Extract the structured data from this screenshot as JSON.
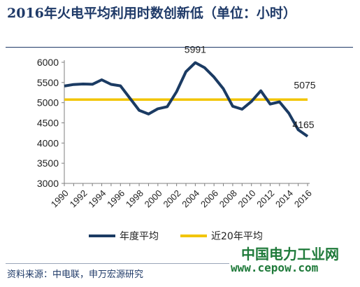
{
  "header": {
    "title": "2016年火电平均利用时数创新低（单位：小时）"
  },
  "footer": {
    "source": "资料来源：中电联，申万宏源研究"
  },
  "watermark": {
    "brand": "中国电力工业网",
    "url": "www.cepow.com"
  },
  "chart_data": {
    "type": "line",
    "x": [
      1990,
      1991,
      1992,
      1993,
      1994,
      1995,
      1996,
      1997,
      1998,
      1999,
      2000,
      2001,
      2002,
      2003,
      2004,
      2005,
      2006,
      2007,
      2008,
      2009,
      2010,
      2011,
      2012,
      2013,
      2014,
      2015,
      2016
    ],
    "x_tick_labels": [
      "1990",
      "1992",
      "1994",
      "1996",
      "1998",
      "2000",
      "2002",
      "2004",
      "2006",
      "2008",
      "2010",
      "2012",
      "2014",
      "2016"
    ],
    "y_tick_labels": [
      "3000",
      "3500",
      "4000",
      "4500",
      "5000",
      "5500",
      "6000"
    ],
    "ylim": [
      3000,
      6000
    ],
    "grid": false,
    "legend_position": "bottom",
    "series": [
      {
        "name": "年度平均",
        "color": "#1b3b63",
        "values": [
          5413,
          5451,
          5462,
          5455,
          5566,
          5454,
          5418,
          5114,
          4811,
          4719,
          4848,
          4900,
          5272,
          5767,
          5991,
          5865,
          5633,
          5344,
          4911,
          4839,
          5031,
          5294,
          4965,
          5021,
          4739,
          4329,
          4165
        ]
      },
      {
        "name": "近20年平均",
        "color": "#f2c500",
        "values": [
          5075,
          5075,
          5075,
          5075,
          5075,
          5075,
          5075,
          5075,
          5075,
          5075,
          5075,
          5075,
          5075,
          5075,
          5075,
          5075,
          5075,
          5075,
          5075,
          5075,
          5075,
          5075,
          5075,
          5075,
          5075,
          5075,
          5075
        ]
      }
    ],
    "annotations": [
      {
        "label": "5991",
        "x": 2004,
        "y": 5991
      },
      {
        "label": "5075",
        "x": 2016,
        "y": 5075
      },
      {
        "label": "4165",
        "x": 2016,
        "y": 4165
      }
    ]
  }
}
